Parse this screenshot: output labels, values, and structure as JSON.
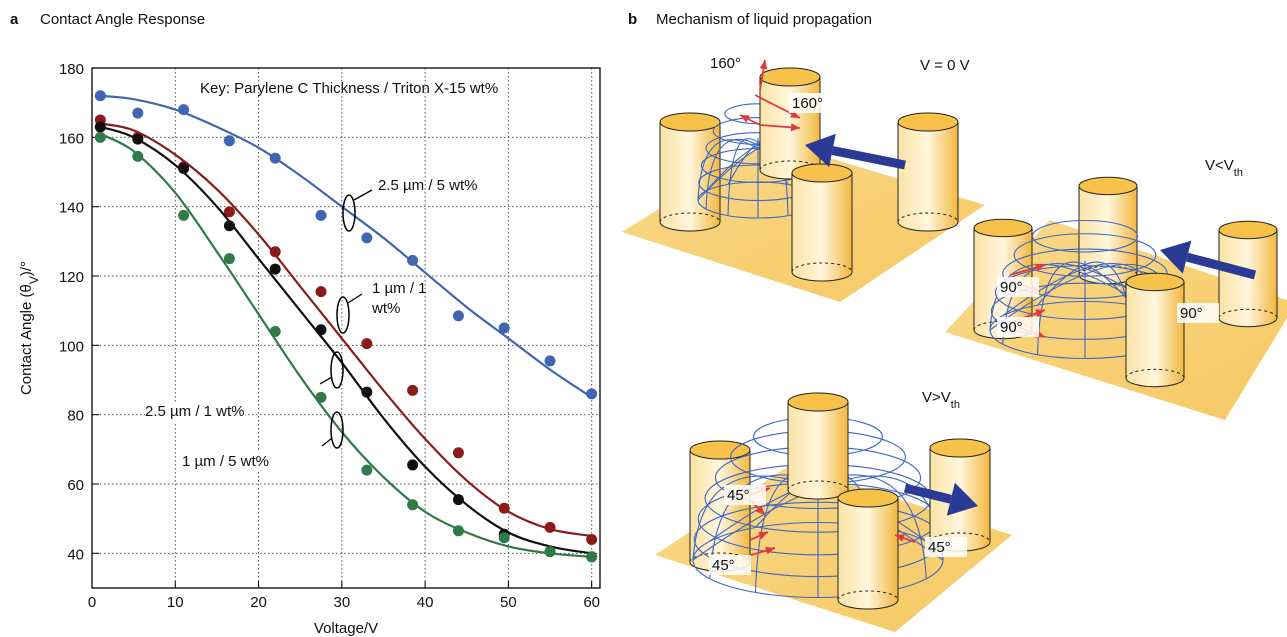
{
  "chart_data": {
    "type": "scatter",
    "panel_label": "a",
    "title": "Contact Angle Response",
    "xlabel": "Voltage/V",
    "ylabel": [
      "Contact Angle (θ",
      "V",
      ")/°"
    ],
    "annotation": "Key: Parylene C Thickness / Triton X-15 wt%",
    "xlim": [
      0,
      61
    ],
    "ylim": [
      30,
      180
    ],
    "xticks": [
      0,
      10,
      20,
      30,
      40,
      50,
      60
    ],
    "yticks": [
      40,
      60,
      80,
      100,
      120,
      140,
      160,
      180
    ],
    "grid": true,
    "x": [
      1,
      5.5,
      11,
      16.5,
      22,
      27.5,
      33,
      38.5,
      44,
      49.5,
      55,
      60
    ],
    "fit_x": [
      1,
      5,
      10,
      15,
      20,
      25,
      30,
      35,
      40,
      45,
      50,
      55,
      60
    ],
    "series": [
      {
        "name": "2.5 µm / 5 wt%",
        "color": "#4066b3",
        "values": [
          172,
          167,
          168,
          159,
          154,
          137.5,
          131,
          124.5,
          108.5,
          105,
          95.5,
          86
        ],
        "fit": [
          172,
          171,
          168,
          163,
          157,
          149,
          140,
          131,
          121,
          111,
          102,
          93,
          85
        ]
      },
      {
        "name": "1 µm / 1 wt%",
        "color": "#8b1c1c",
        "values": [
          165,
          160,
          151.5,
          138.5,
          127,
          115.5,
          100.5,
          87,
          69,
          53,
          47.5,
          44
        ],
        "fit": [
          164,
          162,
          155,
          145,
          132,
          117,
          102,
          87,
          73,
          61,
          52,
          47,
          45
        ]
      },
      {
        "name": "2.5 µm / 1 wt%",
        "color": "#111111",
        "values": [
          163,
          159.5,
          151,
          134.5,
          122,
          104.5,
          86.5,
          65.5,
          55.5,
          45.5,
          40.5,
          39
        ],
        "fit": [
          163,
          160,
          152,
          140,
          125,
          110,
          95,
          79,
          65,
          54,
          46,
          42,
          40
        ]
      },
      {
        "name": "1 µm / 5 wt%",
        "color": "#2f7a48",
        "values": [
          160,
          154.5,
          137.5,
          125,
          104,
          85,
          64,
          54,
          46.5,
          44.5,
          40.5,
          39
        ],
        "fit": [
          161,
          156,
          144,
          127,
          109,
          91,
          75,
          62,
          52,
          46,
          42,
          40,
          39
        ]
      }
    ]
  },
  "diagram": {
    "panel_label": "b",
    "title": "Mechanism of liquid propagation",
    "states": [
      {
        "label": [
          "V = 0 V"
        ],
        "angles": [
          "160°",
          "160°"
        ]
      },
      {
        "label": [
          "V<V",
          "th"
        ],
        "angles": [
          "90°",
          "90°",
          "90°"
        ]
      },
      {
        "label": [
          "V>V",
          "th"
        ],
        "angles": [
          "45°",
          "45°",
          "45°"
        ]
      }
    ]
  }
}
